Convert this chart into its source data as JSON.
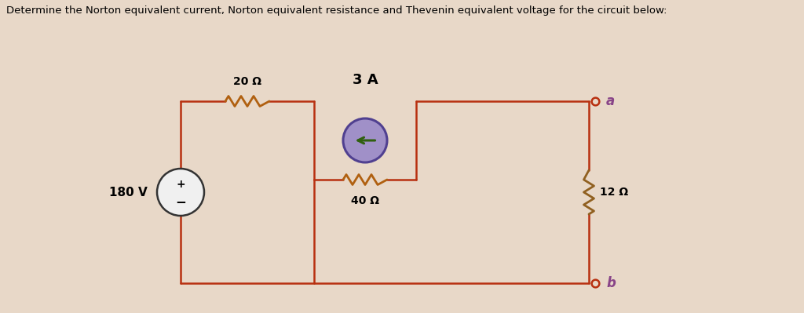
{
  "title": "Determine the Norton equivalent current, Norton equivalent resistance and Thevenin equivalent voltage for the circuit below:",
  "title_fontsize": 9.5,
  "bg_color": "#e8d8c8",
  "wire_color": "#b83010",
  "resistor_color_h": "#b06010",
  "resistor_color_v": "#906020",
  "cs_fill_color": "#a090c8",
  "cs_edge_color": "#504090",
  "arrow_color": "#306010",
  "label_color": "#000000",
  "terminal_fill": "#e8d8c8",
  "terminal_edge": "#b83010",
  "italic_label_color": "#884488",
  "resistor_20_label": "20 Ω",
  "resistor_40_label": "40 Ω",
  "resistor_12_label": "12 Ω",
  "cs_label": "3 A",
  "vs_label": "180 V",
  "terminal_a_label": "a",
  "terminal_b_label": "b",
  "vs_edge_color": "#333333",
  "vs_fill_color": "#f0f0f0"
}
